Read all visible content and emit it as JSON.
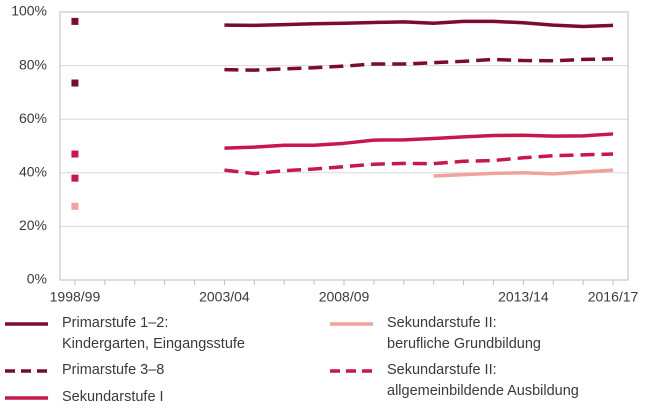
{
  "chart_data": {
    "type": "line",
    "categories": [
      "1998/99",
      null,
      null,
      null,
      null,
      "2003/04",
      null,
      null,
      null,
      "2008/09",
      null,
      null,
      null,
      null,
      null,
      "2013/14",
      null,
      null,
      "2016/17"
    ],
    "ylim": [
      0,
      100
    ],
    "yticks": [
      {
        "value": 0,
        "label": "0%"
      },
      {
        "value": 20,
        "label": "20%"
      },
      {
        "value": 40,
        "label": "40%"
      },
      {
        "value": 60,
        "label": "60%"
      },
      {
        "value": 80,
        "label": "80%"
      },
      {
        "value": 100,
        "label": "100%"
      }
    ],
    "grid": true,
    "series": [
      {
        "name": "Primarstufe 1–2:\nKindergarten, Eingangsstufe",
        "color": "#7b0c2e",
        "dashed": false,
        "values": [
          96.5,
          null,
          null,
          null,
          null,
          95.1,
          95.0,
          95.3,
          95.6,
          95.8,
          96.1,
          96.3,
          95.8,
          96.5,
          96.5,
          96.0,
          95.1,
          94.6,
          95.0
        ]
      },
      {
        "name": "Primarstufe 3–8",
        "color": "#7b0c2e",
        "dashed": true,
        "values": [
          73.5,
          null,
          null,
          null,
          null,
          78.5,
          78.3,
          78.8,
          79.2,
          79.8,
          80.6,
          80.6,
          81.1,
          81.6,
          82.3,
          81.9,
          81.8,
          82.3,
          82.5
        ]
      },
      {
        "name": "Sekundarstufe I",
        "color": "#c8174b",
        "dashed": false,
        "values": [
          47,
          null,
          null,
          null,
          null,
          49.2,
          49.6,
          50.3,
          50.3,
          51.0,
          52.2,
          52.3,
          52.8,
          53.4,
          53.9,
          54.0,
          53.7,
          53.8,
          54.5
        ]
      },
      {
        "name": "Sekundarstufe II:\nberufliche Grundbildung",
        "color": "#f2a19e",
        "dashed": false,
        "values": [
          27.5,
          null,
          null,
          null,
          null,
          null,
          null,
          null,
          null,
          null,
          null,
          null,
          38.8,
          39.3,
          39.8,
          40.0,
          39.6,
          40.3,
          41.0
        ]
      },
      {
        "name": "Sekundarstufe II:\nallgemeinbildende Ausbildung",
        "color": "#c8174b",
        "dashed": true,
        "values": [
          38,
          null,
          null,
          null,
          null,
          41.0,
          39.7,
          40.8,
          41.4,
          42.3,
          43.2,
          43.5,
          43.4,
          44.3,
          44.6,
          45.6,
          46.4,
          46.7,
          47.0
        ]
      }
    ]
  }
}
